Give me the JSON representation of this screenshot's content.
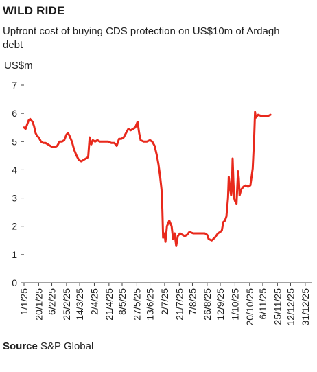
{
  "title": "WILD RIDE",
  "subtitle": "Upfront cost of buying CDS protection on US$10m of Ardagh debt",
  "source_label": "Source",
  "source_text": "S&P Global",
  "colors": {
    "line": "#e8291c",
    "axis": "#444444",
    "text": "#222222"
  },
  "chart_data": {
    "type": "line",
    "ylabel": "US$m",
    "ylim": [
      0,
      7
    ],
    "yticks": [
      0,
      1,
      2,
      3,
      4,
      5,
      6,
      7
    ],
    "xlim": [
      "2025-01-01",
      "2026-01-09"
    ],
    "xtick_labels": [
      {
        "date": "2025-01-01",
        "label": "1/1/25"
      },
      {
        "date": "2025-01-20",
        "label": "20/1/25"
      },
      {
        "date": "2025-02-06",
        "label": "6/2/25"
      },
      {
        "date": "2025-02-25",
        "label": "25/2/25"
      },
      {
        "date": "2025-03-14",
        "label": "14/3/25"
      },
      {
        "date": "2025-04-02",
        "label": "2/4/25"
      },
      {
        "date": "2025-04-21",
        "label": "21/4/25"
      },
      {
        "date": "2025-05-08",
        "label": "8/5/25"
      },
      {
        "date": "2025-05-27",
        "label": "27/5/25"
      },
      {
        "date": "2025-06-13",
        "label": "13/6/25"
      },
      {
        "date": "2025-07-02",
        "label": "2/7/25"
      },
      {
        "date": "2025-07-21",
        "label": "21/7/25"
      },
      {
        "date": "2025-08-07",
        "label": "7/8/25"
      },
      {
        "date": "2025-08-26",
        "label": "26/8/25"
      },
      {
        "date": "2025-09-12",
        "label": "12/9/25"
      },
      {
        "date": "2025-10-01",
        "label": "1/10/25"
      },
      {
        "date": "2025-10-20",
        "label": "20/10/25"
      },
      {
        "date": "2025-11-06",
        "label": "6/11/25"
      },
      {
        "date": "2025-11-25",
        "label": "25/11/25"
      },
      {
        "date": "2025-12-12",
        "label": "12/12/25"
      },
      {
        "date": "2025-12-31",
        "label": "31/12/25"
      }
    ],
    "series": [
      {
        "points": [
          [
            "2025-01-01",
            5.5
          ],
          [
            "2025-01-03",
            5.45
          ],
          [
            "2025-01-05",
            5.6
          ],
          [
            "2025-01-07",
            5.75
          ],
          [
            "2025-01-09",
            5.8
          ],
          [
            "2025-01-12",
            5.7
          ],
          [
            "2025-01-14",
            5.55
          ],
          [
            "2025-01-16",
            5.3
          ],
          [
            "2025-01-18",
            5.2
          ],
          [
            "2025-01-20",
            5.15
          ],
          [
            "2025-01-23",
            5.0
          ],
          [
            "2025-01-26",
            4.95
          ],
          [
            "2025-01-29",
            4.95
          ],
          [
            "2025-02-01",
            4.9
          ],
          [
            "2025-02-04",
            4.85
          ],
          [
            "2025-02-07",
            4.8
          ],
          [
            "2025-02-10",
            4.8
          ],
          [
            "2025-02-13",
            4.85
          ],
          [
            "2025-02-16",
            5.0
          ],
          [
            "2025-02-19",
            5.0
          ],
          [
            "2025-02-22",
            5.05
          ],
          [
            "2025-02-25",
            5.25
          ],
          [
            "2025-02-27",
            5.3
          ],
          [
            "2025-03-01",
            5.2
          ],
          [
            "2025-03-04",
            5.0
          ],
          [
            "2025-03-07",
            4.7
          ],
          [
            "2025-03-10",
            4.5
          ],
          [
            "2025-03-13",
            4.35
          ],
          [
            "2025-03-16",
            4.3
          ],
          [
            "2025-03-19",
            4.35
          ],
          [
            "2025-03-22",
            4.4
          ],
          [
            "2025-03-25",
            4.45
          ],
          [
            "2025-03-27",
            5.15
          ],
          [
            "2025-03-29",
            4.9
          ],
          [
            "2025-03-31",
            5.05
          ],
          [
            "2025-04-03",
            5.0
          ],
          [
            "2025-04-06",
            5.05
          ],
          [
            "2025-04-09",
            5.0
          ],
          [
            "2025-04-12",
            5.0
          ],
          [
            "2025-04-16",
            5.0
          ],
          [
            "2025-04-20",
            5.0
          ],
          [
            "2025-04-24",
            4.95
          ],
          [
            "2025-04-28",
            4.95
          ],
          [
            "2025-05-01",
            4.85
          ],
          [
            "2025-05-04",
            5.1
          ],
          [
            "2025-05-07",
            5.1
          ],
          [
            "2025-05-10",
            5.15
          ],
          [
            "2025-05-13",
            5.3
          ],
          [
            "2025-05-16",
            5.45
          ],
          [
            "2025-05-19",
            5.4
          ],
          [
            "2025-05-22",
            5.45
          ],
          [
            "2025-05-25",
            5.5
          ],
          [
            "2025-05-28",
            5.7
          ],
          [
            "2025-05-30",
            5.3
          ],
          [
            "2025-06-01",
            5.05
          ],
          [
            "2025-06-05",
            5.0
          ],
          [
            "2025-06-09",
            5.0
          ],
          [
            "2025-06-13",
            5.05
          ],
          [
            "2025-06-16",
            5.0
          ],
          [
            "2025-06-19",
            4.85
          ],
          [
            "2025-06-22",
            4.5
          ],
          [
            "2025-06-24",
            4.2
          ],
          [
            "2025-06-26",
            3.8
          ],
          [
            "2025-06-28",
            3.3
          ],
          [
            "2025-06-29",
            2.6
          ],
          [
            "2025-06-30",
            1.6
          ],
          [
            "2025-07-02",
            1.75
          ],
          [
            "2025-07-03",
            1.45
          ],
          [
            "2025-07-05",
            2.0
          ],
          [
            "2025-07-08",
            2.2
          ],
          [
            "2025-07-11",
            2.0
          ],
          [
            "2025-07-13",
            1.55
          ],
          [
            "2025-07-15",
            1.75
          ],
          [
            "2025-07-17",
            1.3
          ],
          [
            "2025-07-19",
            1.65
          ],
          [
            "2025-07-22",
            1.75
          ],
          [
            "2025-07-25",
            1.7
          ],
          [
            "2025-07-28",
            1.65
          ],
          [
            "2025-07-31",
            1.7
          ],
          [
            "2025-08-03",
            1.8
          ],
          [
            "2025-08-08",
            1.75
          ],
          [
            "2025-08-13",
            1.75
          ],
          [
            "2025-08-18",
            1.75
          ],
          [
            "2025-08-23",
            1.75
          ],
          [
            "2025-08-26",
            1.7
          ],
          [
            "2025-08-28",
            1.55
          ],
          [
            "2025-09-01",
            1.5
          ],
          [
            "2025-09-05",
            1.6
          ],
          [
            "2025-09-09",
            1.75
          ],
          [
            "2025-09-12",
            1.8
          ],
          [
            "2025-09-14",
            1.85
          ],
          [
            "2025-09-16",
            2.15
          ],
          [
            "2025-09-18",
            2.2
          ],
          [
            "2025-09-20",
            2.35
          ],
          [
            "2025-09-22",
            3.0
          ],
          [
            "2025-09-23",
            3.75
          ],
          [
            "2025-09-25",
            3.3
          ],
          [
            "2025-09-26",
            3.1
          ],
          [
            "2025-09-27",
            3.3
          ],
          [
            "2025-09-28",
            4.4
          ],
          [
            "2025-09-29",
            3.6
          ],
          [
            "2025-09-30",
            3.0
          ],
          [
            "2025-10-01",
            2.9
          ],
          [
            "2025-10-03",
            2.8
          ],
          [
            "2025-10-05",
            3.95
          ],
          [
            "2025-10-06",
            3.7
          ],
          [
            "2025-10-07",
            3.1
          ],
          [
            "2025-10-09",
            3.3
          ],
          [
            "2025-10-12",
            3.4
          ],
          [
            "2025-10-15",
            3.45
          ],
          [
            "2025-10-18",
            3.4
          ],
          [
            "2025-10-21",
            3.45
          ],
          [
            "2025-10-23",
            3.85
          ],
          [
            "2025-10-24",
            4.05
          ],
          [
            "2025-10-26",
            5.2
          ],
          [
            "2025-10-27",
            6.05
          ],
          [
            "2025-10-28",
            5.85
          ],
          [
            "2025-10-31",
            5.95
          ],
          [
            "2025-11-05",
            5.9
          ],
          [
            "2025-11-12",
            5.9
          ],
          [
            "2025-11-16",
            5.95
          ]
        ]
      }
    ],
    "grid": false
  }
}
